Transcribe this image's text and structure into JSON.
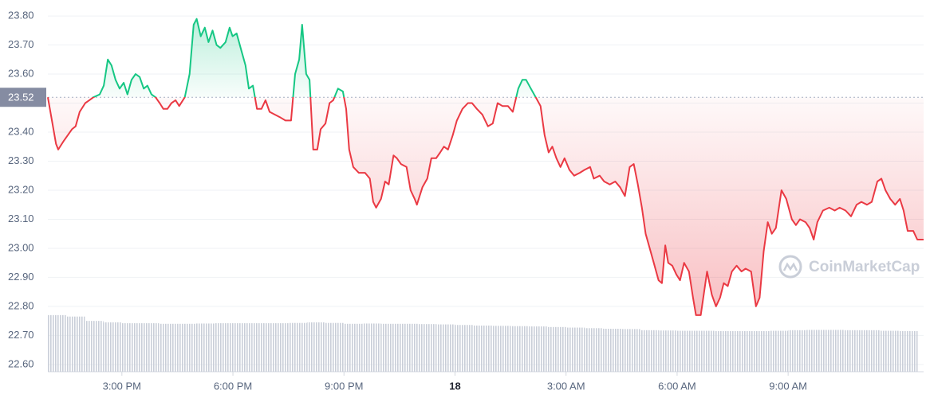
{
  "chart_data": {
    "type": "line",
    "x": [
      13.0,
      13.22,
      13.28,
      13.43,
      13.65,
      13.75,
      13.86,
      14.01,
      14.12,
      14.23,
      14.4,
      14.51,
      14.62,
      14.72,
      14.83,
      14.94,
      15.05,
      15.15,
      15.26,
      15.37,
      15.48,
      15.59,
      15.69,
      15.8,
      15.91,
      16.02,
      16.12,
      16.23,
      16.34,
      16.45,
      16.55,
      16.7,
      16.83,
      16.94,
      17.02,
      17.13,
      17.24,
      17.34,
      17.45,
      17.56,
      17.66,
      17.8,
      17.91,
      17.99,
      18.1,
      18.23,
      18.34,
      18.43,
      18.54,
      18.65,
      18.77,
      18.88,
      18.99,
      19.14,
      19.29,
      19.42,
      19.57,
      19.68,
      19.79,
      19.87,
      19.98,
      20.07,
      20.17,
      20.28,
      20.37,
      20.5,
      20.61,
      20.71,
      20.84,
      20.97,
      21.06,
      21.14,
      21.25,
      21.4,
      21.57,
      21.7,
      21.79,
      21.87,
      22.0,
      22.11,
      22.21,
      22.34,
      22.43,
      22.54,
      22.69,
      22.8,
      22.91,
      22.97,
      23.12,
      23.25,
      23.36,
      23.49,
      23.6,
      23.7,
      23.81,
      23.94,
      24.05,
      24.2,
      24.35,
      24.46,
      24.59,
      24.74,
      24.89,
      25.02,
      25.15,
      25.28,
      25.43,
      25.56,
      25.71,
      25.82,
      25.92,
      26.05,
      26.18,
      26.31,
      26.42,
      26.53,
      26.63,
      26.74,
      26.85,
      26.96,
      27.09,
      27.22,
      27.37,
      27.5,
      27.65,
      27.75,
      27.91,
      28.03,
      28.18,
      28.33,
      28.46,
      28.59,
      28.72,
      28.83,
      28.94,
      29.05,
      29.15,
      29.26,
      29.37,
      29.5,
      29.59,
      29.68,
      29.76,
      29.87,
      29.98,
      30.08,
      30.19,
      30.32,
      30.43,
      30.51,
      30.64,
      30.81,
      30.94,
      31.05,
      31.16,
      31.26,
      31.37,
      31.48,
      31.61,
      31.74,
      31.85,
      32.0,
      32.13,
      32.23,
      32.34,
      32.45,
      32.56,
      32.67,
      32.82,
      32.95,
      33.1,
      33.21,
      33.32,
      33.47,
      33.58,
      33.69,
      33.79,
      33.94,
      34.11,
      34.26,
      34.39,
      34.55,
      34.7,
      34.85,
      34.98,
      35.13,
      35.26,
      35.41,
      35.52,
      35.63,
      35.76,
      35.89,
      36.02,
      36.12,
      36.23,
      36.38,
      36.49,
      36.66
    ],
    "series": [
      {
        "color": "#ea3943",
        "values": [
          23.52,
          23.36,
          23.34,
          23.37,
          23.41,
          23.42,
          23.47,
          23.5,
          23.51,
          23.52,
          23.53,
          23.56,
          23.65,
          23.63,
          23.58,
          23.55,
          23.57,
          23.53,
          23.58,
          23.6,
          23.59,
          23.55,
          23.56,
          23.53,
          23.52,
          23.5,
          23.48,
          23.48,
          23.5,
          23.51,
          23.49,
          23.52,
          23.6,
          23.77,
          23.79,
          23.73,
          23.76,
          23.71,
          23.75,
          23.7,
          23.69,
          23.71,
          23.76,
          23.73,
          23.74,
          23.68,
          23.63,
          23.55,
          23.56,
          23.48,
          23.48,
          23.51,
          23.47,
          23.46,
          23.45,
          23.44,
          23.44,
          23.6,
          23.65,
          23.77,
          23.6,
          23.58,
          23.34,
          23.34,
          23.41,
          23.43,
          23.5,
          23.51,
          23.55,
          23.54,
          23.48,
          23.34,
          23.28,
          23.26,
          23.26,
          23.24,
          23.16,
          23.14,
          23.17,
          23.23,
          23.22,
          23.32,
          23.31,
          23.29,
          23.28,
          23.2,
          23.17,
          23.15,
          23.21,
          23.24,
          23.31,
          23.31,
          23.33,
          23.35,
          23.34,
          23.39,
          23.44,
          23.48,
          23.5,
          23.5,
          23.48,
          23.46,
          23.42,
          23.43,
          23.5,
          23.49,
          23.49,
          23.47,
          23.55,
          23.58,
          23.58,
          23.55,
          23.52,
          23.49,
          23.39,
          23.33,
          23.35,
          23.31,
          23.28,
          23.31,
          23.27,
          23.25,
          23.26,
          23.27,
          23.28,
          23.24,
          23.25,
          23.23,
          23.22,
          23.23,
          23.21,
          23.18,
          23.28,
          23.29,
          23.22,
          23.14,
          23.05,
          23.0,
          22.95,
          22.89,
          22.88,
          23.01,
          22.95,
          22.94,
          22.91,
          22.89,
          22.95,
          22.92,
          22.83,
          22.77,
          22.77,
          22.92,
          22.84,
          22.8,
          22.83,
          22.88,
          22.87,
          22.92,
          22.94,
          22.92,
          22.93,
          22.92,
          22.8,
          22.83,
          22.99,
          23.09,
          23.05,
          23.07,
          23.2,
          23.17,
          23.1,
          23.08,
          23.1,
          23.09,
          23.07,
          23.03,
          23.09,
          23.13,
          23.14,
          23.13,
          23.14,
          23.13,
          23.11,
          23.15,
          23.16,
          23.15,
          23.16,
          23.23,
          23.24,
          23.2,
          23.17,
          23.15,
          23.17,
          23.13,
          23.06,
          23.06,
          23.03,
          23.03
        ]
      }
    ],
    "above_color": "#16c784",
    "reference": {
      "value": 23.52,
      "label": "23.52"
    },
    "volume": {
      "color": "#c9ced8",
      "x": [
        13.0,
        13.5,
        14.0,
        14.5,
        15.0,
        15.5,
        16.0,
        16.5,
        17.0,
        17.5,
        18.0,
        18.5,
        19.0,
        19.5,
        20.0,
        20.5,
        21.0,
        21.5,
        22.0,
        22.5,
        23.0,
        23.5,
        24.0,
        24.5,
        25.0,
        25.5,
        26.0,
        26.5,
        27.0,
        27.5,
        28.0,
        28.5,
        29.0,
        29.5,
        30.0,
        30.5,
        31.0,
        31.5,
        32.0,
        32.5,
        33.0,
        33.5,
        34.0,
        34.5,
        35.0,
        35.5,
        36.0
      ],
      "values": [
        22.77,
        22.765,
        22.75,
        22.745,
        22.742,
        22.742,
        22.74,
        22.74,
        22.741,
        22.742,
        22.742,
        22.742,
        22.742,
        22.743,
        22.745,
        22.743,
        22.74,
        22.741,
        22.74,
        22.74,
        22.739,
        22.738,
        22.736,
        22.734,
        22.733,
        22.732,
        22.731,
        22.729,
        22.727,
        22.725,
        22.723,
        22.722,
        22.718,
        22.717,
        22.716,
        22.716,
        22.715,
        22.715,
        22.715,
        22.716,
        22.718,
        22.719,
        22.719,
        22.718,
        22.718,
        22.716,
        22.715
      ]
    },
    "xlim": [
      13,
      36.66
    ],
    "ylim": [
      22.575,
      23.855
    ],
    "xticks": [
      {
        "value": 15,
        "label": "3:00 PM"
      },
      {
        "value": 18,
        "label": "6:00 PM"
      },
      {
        "value": 21,
        "label": "9:00 PM"
      },
      {
        "value": 24,
        "label": "18"
      },
      {
        "value": 27,
        "label": "3:00 AM"
      },
      {
        "value": 30,
        "label": "6:00 AM"
      },
      {
        "value": 33,
        "label": "9:00 AM"
      }
    ],
    "yticks": [
      {
        "value": 22.6,
        "label": "22.60"
      },
      {
        "value": 22.7,
        "label": "22.70"
      },
      {
        "value": 22.8,
        "label": "22.80"
      },
      {
        "value": 22.9,
        "label": "22.90"
      },
      {
        "value": 23.0,
        "label": "23.00"
      },
      {
        "value": 23.1,
        "label": "23.10"
      },
      {
        "value": 23.2,
        "label": "23.20"
      },
      {
        "value": 23.3,
        "label": "23.30"
      },
      {
        "value": 23.4,
        "label": "23.40"
      },
      {
        "value": 23.5,
        "label": "23.50"
      },
      {
        "value": 23.6,
        "label": "23.60"
      },
      {
        "value": 23.7,
        "label": "23.70"
      },
      {
        "value": 23.8,
        "label": "23.80"
      }
    ],
    "grid": true,
    "watermark": "CoinMarketCap"
  }
}
